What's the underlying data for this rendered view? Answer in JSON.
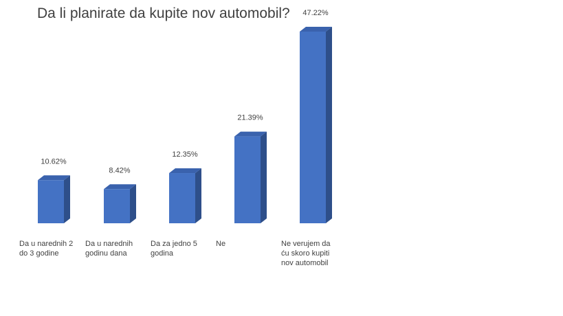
{
  "chart_data": {
    "type": "bar",
    "title": "Da li planirate da kupite nov automobil?",
    "categories": [
      [
        "Da u narednih 2",
        "do 3 godine"
      ],
      [
        "Da u narednih",
        "godinu dana"
      ],
      [
        "Da za jedno 5",
        "godina"
      ],
      [
        "Ne"
      ],
      [
        "Ne verujem da",
        "ću skoro kupiti",
        "nov automobil"
      ]
    ],
    "values": [
      10.62,
      8.42,
      12.35,
      21.39,
      47.22
    ],
    "value_labels": [
      "10.62%",
      "8.42%",
      "12.35%",
      "21.39%",
      "47.22%"
    ],
    "unit": "%",
    "ylim": [
      0,
      50
    ],
    "grid": false,
    "legend": "none",
    "style": "3d-column",
    "colors": {
      "front": "#4472C4",
      "side": "#2E4F8A",
      "top": "#3A62AD"
    }
  }
}
